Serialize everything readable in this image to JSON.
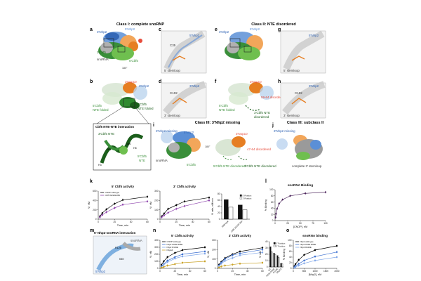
{
  "class_titles": {
    "class1": "Class I: complete snoRNP",
    "class2": "Class II: NTE disordered",
    "class3": "Class III: 3'Nhp2 missing",
    "class3b": "Class III: subclass II"
  },
  "panel_letters": [
    "a",
    "b",
    "c",
    "d",
    "e",
    "f",
    "g",
    "h",
    "i",
    "j",
    "k",
    "l",
    "m",
    "n",
    "o"
  ],
  "structure_labels": {
    "a_5nhp2": "5'Nhp2",
    "a_3nhp2": "3'Nhp2",
    "a_3cbf5": "3'Cbf5",
    "a_snorna": "snoRNA",
    "a_5cbf5": "5'Cbf5",
    "a_3nop10": "3'Nop10",
    "a_rot": "180°",
    "b_3nop10": "3'Nop10",
    "b_3nhp2": "3'Nhp2",
    "b_5cbf5": "5'Cbf5",
    "b_nte1": "NTE folded",
    "b_3cbf5": "3'Cbf5",
    "b_nte2": "NTE folded",
    "c_5nhp2": "5'Nhp2",
    "c_c": "C35",
    "c_sl": "5' stemloop",
    "d_3nhp2": "3'Nhp2",
    "d_c": "C102",
    "d_sl": "3' stemloop",
    "e_5nhp2": "5'Nhp2",
    "e_3nhp2": "3'Nhp2",
    "f_3nop10": "3'Nop10",
    "f_dis": "59-64 disordered",
    "f_5cbf5": "5'Cbf5",
    "f_nte": "NTE folded",
    "f_3cbf5": "3'Cbf5 NTE",
    "f_dis2": "disordered",
    "g_5nhp2": "5'Nhp2",
    "g_sl": "5' stemloop",
    "h_3nhp2": "3'Nhp2",
    "h_c": "C102",
    "h_sl": "3' stemloop",
    "ntebox_title": "Cbf5 NTE-NTE interaction",
    "ntebox_3cbf5": "3'Cbf5 NTE",
    "ntebox_5cbf5": "5'Cbf5",
    "ntebox_nte": "NTE",
    "ntebox_p61": "P61",
    "ntebox_v46": "V46",
    "ntebox_h3": "H3",
    "ntebox_h5": "H5",
    "i_missing": "3'Nhp2 missing",
    "i_5nhp2": "5'Nhp2",
    "i_snorna": "snoRNA",
    "i_5cbf5": "5'Cbf5",
    "i_rot": "180°",
    "i_3nop10": "3'Nop10",
    "i_dis": "47-64 disordered",
    "i_5nte": "5'Cbf5 NTE disordered",
    "i_3nte": "3'Cbf5 NTE disordered",
    "j_missing": "3'Nhp2 missing",
    "j_complete": "complete 3' stemloop",
    "m_title": "5' Nhp2-snoRNA interaction",
    "m_snorna": "snoRNA",
    "m_5nhp2": "5'Nhp2",
    "m_r": "R125",
    "m_k": "K89"
  },
  "chart_titles": {
    "k": "5' Cbf5 activity",
    "k2": "3' Cbf5 activity",
    "l": "snoRNA Binding",
    "n": "5' Cbf5 activity",
    "n2": "3' Cbf5 activity",
    "o": "snoRNA binding"
  },
  "chart_data": [
    {
      "id": "k1",
      "type": "line",
      "title": "5' Cbf5 activity",
      "xlabel": "Time, min",
      "ylabel": "Ψ, nM",
      "xlim": [
        0,
        60
      ],
      "ylim": [
        0,
        600
      ],
      "xticks": [
        0,
        20,
        40,
        60
      ],
      "yticks": [
        0,
        200,
        400,
        600
      ],
      "series": [
        {
          "name": "CNOP wild-type",
          "color": "#000000",
          "x": [
            2,
            5,
            10,
            20,
            30,
            60
          ],
          "y": [
            60,
            130,
            210,
            330,
            410,
            480
          ]
        },
        {
          "name": "Cbf5 W22AF28A",
          "color": "#8e44ad",
          "x": [
            2,
            5,
            10,
            20,
            30,
            60
          ],
          "y": [
            40,
            90,
            150,
            240,
            310,
            380
          ]
        }
      ]
    },
    {
      "id": "k2",
      "type": "line",
      "title": "3' Cbf5 activity",
      "xlabel": "Time, min",
      "ylabel": "Ψ, nM",
      "xlim": [
        0,
        60
      ],
      "ylim": [
        0,
        300
      ],
      "xticks": [
        0,
        20,
        40,
        60
      ],
      "yticks": [
        0,
        100,
        200,
        300
      ],
      "series": [
        {
          "name": "CNOP wild-type",
          "color": "#000000",
          "x": [
            2,
            5,
            10,
            20,
            30,
            60
          ],
          "y": [
            30,
            60,
            110,
            150,
            190,
            230
          ]
        },
        {
          "name": "Cbf5 W22AF28A",
          "color": "#8e44ad",
          "x": [
            2,
            5,
            10,
            20,
            30,
            60
          ],
          "y": [
            20,
            40,
            70,
            110,
            140,
            200
          ]
        }
      ]
    },
    {
      "id": "k3",
      "type": "bar",
      "ylabel": "Ψ rate, nM/min",
      "categories": [
        "Wild-type",
        "Cbf5 W22AF28A"
      ],
      "ylim": [
        0,
        80
      ],
      "yticks": [
        0,
        20,
        40,
        60,
        80
      ],
      "series": [
        {
          "name": "5' Position",
          "color": "#111111",
          "values": [
            62,
            45
          ]
        },
        {
          "name": "3' Position",
          "color": "#ffffff",
          "values": [
            38,
            30
          ]
        }
      ]
    },
    {
      "id": "l",
      "type": "scatter",
      "title": "snoRNA Binding",
      "xlabel": "[CNOP], nM",
      "ylabel": "% Binding",
      "xlim": [
        0,
        100
      ],
      "ylim": [
        0,
        100
      ],
      "xticks": [
        0,
        25,
        50,
        75,
        100
      ],
      "yticks": [
        0,
        20,
        40,
        60,
        80,
        100
      ],
      "series": [
        {
          "name": "snoRNA",
          "color": "#4a235a",
          "x": [
            1,
            2,
            4,
            8,
            15,
            30,
            60,
            100
          ],
          "y": [
            10,
            22,
            38,
            55,
            68,
            80,
            88,
            92
          ]
        }
      ]
    },
    {
      "id": "n1",
      "type": "line",
      "title": "5' Cbf5 activity",
      "xlabel": "Time, min",
      "ylabel": "Ψ, nM",
      "xlim": [
        0,
        60
      ],
      "ylim": [
        0,
        400
      ],
      "xticks": [
        0,
        20,
        40,
        60
      ],
      "yticks": [
        0,
        100,
        200,
        300,
        400
      ],
      "series": [
        {
          "name": "CNOP wild-type",
          "color": "#000000",
          "x": [
            2,
            5,
            10,
            20,
            30,
            60
          ],
          "y": [
            50,
            100,
            160,
            220,
            260,
            300
          ]
        },
        {
          "name": "Nhp2 K91E R95E",
          "color": "#3b6fd1",
          "x": [
            2,
            5,
            10,
            20,
            30,
            60
          ],
          "y": [
            30,
            60,
            110,
            160,
            200,
            240
          ]
        },
        {
          "name": "Nhp2 R119E",
          "color": "#7fa6e8",
          "x": [
            2,
            5,
            10,
            20,
            30,
            60
          ],
          "y": [
            20,
            50,
            90,
            140,
            170,
            210
          ]
        },
        {
          "name": "Nhp2Δ",
          "color": "#c9a227",
          "x": [
            2,
            5,
            10,
            20,
            30,
            60
          ],
          "y": [
            10,
            20,
            40,
            60,
            80,
            100
          ]
        }
      ]
    },
    {
      "id": "n2",
      "type": "line",
      "title": "3' Cbf5 activity",
      "xlabel": "Time, min",
      "ylabel": "Ψ, nM",
      "xlim": [
        0,
        60
      ],
      "ylim": [
        0,
        300
      ],
      "xticks": [
        0,
        20,
        40,
        60
      ],
      "yticks": [
        0,
        100,
        200,
        300
      ],
      "series": [
        {
          "name": "CNOP wild-type",
          "color": "#000000",
          "x": [
            2,
            5,
            10,
            20,
            30,
            60
          ],
          "y": [
            40,
            70,
            110,
            150,
            180,
            220
          ]
        },
        {
          "name": "Nhp2 K91E R95E",
          "color": "#3b6fd1",
          "x": [
            2,
            5,
            10,
            20,
            30,
            60
          ],
          "y": [
            30,
            60,
            100,
            140,
            160,
            200
          ]
        },
        {
          "name": "Nhp2 R119E",
          "color": "#7fa6e8",
          "x": [
            2,
            5,
            10,
            20,
            30,
            60
          ],
          "y": [
            25,
            50,
            80,
            110,
            140,
            170
          ]
        },
        {
          "name": "Nhp2Δ",
          "color": "#c9a227",
          "x": [
            2,
            5,
            10,
            20,
            30,
            60
          ],
          "y": [
            10,
            20,
            30,
            40,
            50,
            60
          ]
        }
      ]
    },
    {
      "id": "n3",
      "type": "bar",
      "ylabel": "Ψ rate",
      "categories": [
        "WT",
        "K91E R95E",
        "R119E",
        "Nhp2Δ"
      ],
      "ylim": [
        0,
        40
      ],
      "yticks": [
        0,
        10,
        20,
        30,
        40
      ],
      "series": [
        {
          "name": "5' Position",
          "color": "#111111",
          "values": [
            32,
            22,
            18,
            6
          ]
        },
        {
          "name": "3' Position",
          "color": "#ffffff",
          "values": [
            24,
            20,
            15,
            5
          ]
        }
      ]
    },
    {
      "id": "o",
      "type": "scatter",
      "title": "snoRNA binding",
      "xlabel": "[Nhp2], nM",
      "ylabel": "% Binding",
      "xlim": [
        0,
        2000
      ],
      "ylim": [
        0,
        100
      ],
      "xticks": [
        0,
        500,
        1000,
        1500,
        2000
      ],
      "yticks": [
        0,
        20,
        40,
        60,
        80,
        100
      ],
      "series": [
        {
          "name": "Nhp2 wild-type",
          "color": "#000000",
          "x": [
            50,
            100,
            250,
            500,
            1000,
            2000
          ],
          "y": [
            8,
            15,
            30,
            48,
            65,
            80
          ]
        },
        {
          "name": "Nhp2 K91E R95E",
          "color": "#3b6fd1",
          "x": [
            50,
            100,
            250,
            500,
            1000,
            2000
          ],
          "y": [
            4,
            8,
            16,
            28,
            42,
            58
          ]
        },
        {
          "name": "Nhp2 R119E",
          "color": "#7fa6e8",
          "x": [
            50,
            100,
            250,
            500,
            1000,
            2000
          ],
          "y": [
            2,
            5,
            10,
            18,
            28,
            40
          ]
        }
      ]
    }
  ]
}
